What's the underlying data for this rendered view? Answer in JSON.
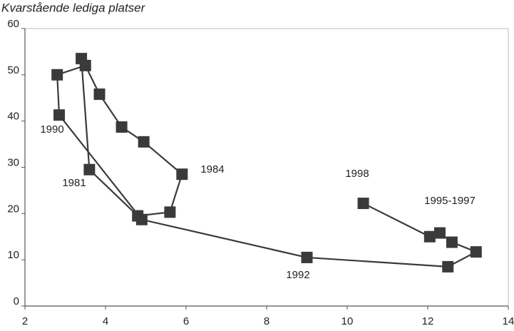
{
  "chart_data": {
    "type": "connected-scatter",
    "title": "Kvarstående lediga platser",
    "series": [
      {
        "color": "#3a3a3a",
        "x": [
          3.4,
          3.6,
          4.8,
          5.6,
          5.9,
          4.95,
          4.4,
          3.85,
          3.5,
          2.8,
          2.85,
          4.9,
          9.0,
          12.5,
          13.2,
          12.6,
          12.3,
          12.05,
          10.4
        ],
        "y": [
          53.5,
          29.5,
          19.5,
          20.3,
          28.5,
          35.5,
          38.7,
          45.8,
          52,
          50,
          41.3,
          18.7,
          10.5,
          8.5,
          11.7,
          13.8,
          15.8,
          15,
          22.2
        ]
      }
    ],
    "annotations": [
      "1981",
      "1984",
      "1990",
      "1992",
      "1995-1997",
      "1998"
    ],
    "xlim": [
      2,
      14
    ],
    "xticks": [
      2,
      4,
      6,
      8,
      10,
      12,
      14
    ],
    "ylim": [
      0,
      60
    ],
    "yticks": [
      0,
      10,
      20,
      30,
      40,
      50,
      60
    ]
  }
}
